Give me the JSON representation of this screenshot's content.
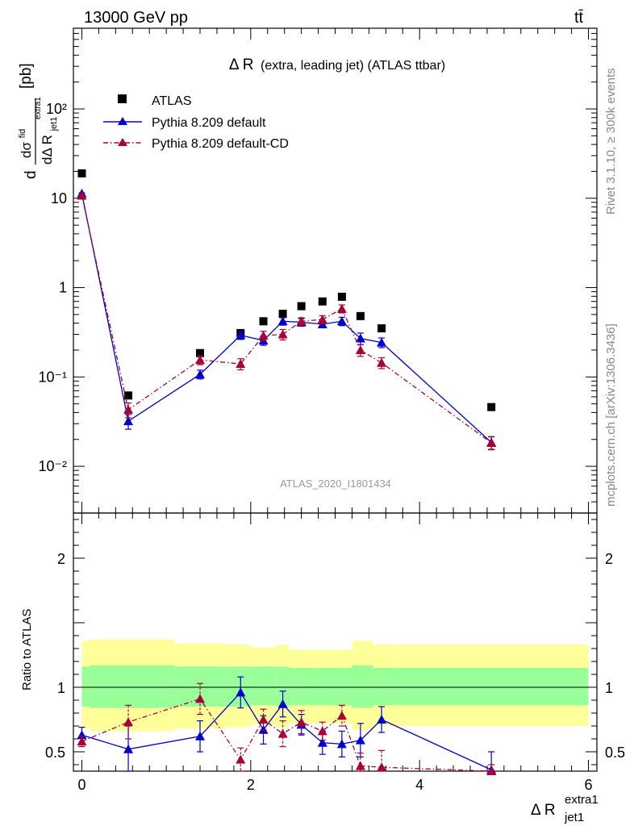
{
  "header": {
    "energy_label": "13000 GeV pp",
    "process_label": "tt̄"
  },
  "side_labels": {
    "rivet": "Rivet 3.1.10, ≥ 300k events",
    "mcplots": "mcplots.cern.ch [arXiv:1306.3436]"
  },
  "chart_data": [
    {
      "type": "scatter",
      "title": "Δ R",
      "title_suffix": "(extra, leading jet) (ATLAS ttbar)",
      "ylabel": "dσ/dΔ R [pb]",
      "ylabel_parts": {
        "num": "dσ",
        "num_sup": "fid",
        "den": "dΔ R",
        "den_sub": "jet1",
        "den_sup": "extra1",
        "unit": "[pb]"
      },
      "yscale": "log",
      "ylim": [
        0.003,
        800
      ],
      "xlim": [
        -0.1,
        6.1
      ],
      "y_tick_labels": [
        "10⁻²",
        "10⁻¹",
        "1",
        "10",
        "10²"
      ],
      "legend_position": "top-left",
      "watermark": "ATLAS_2020_I1801434",
      "series": [
        {
          "name": "ATLAS",
          "color": "#000000",
          "marker": "square",
          "line": "none",
          "x": [
            0.0,
            0.55,
            1.4,
            1.88,
            2.15,
            2.38,
            2.6,
            2.85,
            3.08,
            3.3,
            3.55,
            4.85
          ],
          "y": [
            19.0,
            0.062,
            0.185,
            0.31,
            0.42,
            0.51,
            0.62,
            0.7,
            0.79,
            0.48,
            0.35,
            0.046
          ]
        },
        {
          "name": "Pythia 8.209 default",
          "color": "#0000cc",
          "marker": "triangle",
          "line": "solid",
          "x": [
            0.0,
            0.55,
            1.4,
            1.88,
            2.15,
            2.38,
            2.6,
            2.85,
            3.08,
            3.3,
            3.55,
            4.85
          ],
          "y": [
            11.3,
            0.032,
            0.107,
            0.293,
            0.256,
            0.42,
            0.41,
            0.39,
            0.42,
            0.27,
            0.243,
            0.0185
          ],
          "err": [
            0.2,
            0.006,
            0.012,
            0.03,
            0.03,
            0.04,
            0.04,
            0.035,
            0.045,
            0.04,
            0.03,
            0.003
          ]
        },
        {
          "name": "Pythia 8.209 default-CD",
          "color": "#aa0033",
          "marker": "triangle",
          "line": "dashdot",
          "x": [
            0.0,
            0.55,
            1.4,
            1.88,
            2.15,
            2.38,
            2.6,
            2.85,
            3.08,
            3.3,
            3.55,
            4.85
          ],
          "y": [
            10.7,
            0.043,
            0.155,
            0.14,
            0.29,
            0.3,
            0.42,
            0.44,
            0.58,
            0.2,
            0.144,
            0.0183
          ],
          "err": [
            0.2,
            0.008,
            0.018,
            0.02,
            0.035,
            0.04,
            0.04,
            0.045,
            0.06,
            0.03,
            0.02,
            0.003
          ]
        }
      ]
    },
    {
      "type": "line",
      "ylabel": "Ratio to ATLAS",
      "xlabel": "Δ R",
      "xlabel_parts": {
        "main": "Δ R",
        "sub": "jet1",
        "sup": "extra1"
      },
      "ylim": [
        0.35,
        2.35
      ],
      "xlim": [
        -0.1,
        6.1
      ],
      "x_ticks": [
        0,
        2,
        4,
        6
      ],
      "y_ticks": [
        0.5,
        1,
        2
      ],
      "band_edges": [
        0.0,
        0.1,
        1.05,
        1.1,
        1.7,
        2.0,
        2.3,
        2.45,
        2.5,
        2.75,
        3.0,
        3.2,
        3.45,
        3.7,
        6.0
      ],
      "band_inner": [
        [
          0.85,
          1.16
        ],
        [
          0.84,
          1.17
        ],
        [
          0.84,
          1.17
        ],
        [
          0.85,
          1.16
        ],
        [
          0.85,
          1.16
        ],
        [
          0.86,
          1.16
        ],
        [
          0.85,
          1.16
        ],
        [
          0.86,
          1.15
        ],
        [
          0.86,
          1.15
        ],
        [
          0.86,
          1.15
        ],
        [
          0.86,
          1.15
        ],
        [
          0.84,
          1.17
        ],
        [
          0.86,
          1.15
        ],
        [
          0.86,
          1.15
        ]
      ],
      "band_outer": [
        [
          0.68,
          1.36
        ],
        [
          0.66,
          1.37
        ],
        [
          0.66,
          1.37
        ],
        [
          0.68,
          1.34
        ],
        [
          0.69,
          1.33
        ],
        [
          0.71,
          1.31
        ],
        [
          0.69,
          1.33
        ],
        [
          0.72,
          1.29
        ],
        [
          0.72,
          1.29
        ],
        [
          0.72,
          1.29
        ],
        [
          0.72,
          1.29
        ],
        [
          0.67,
          1.36
        ],
        [
          0.7,
          1.33
        ],
        [
          0.7,
          1.33
        ]
      ],
      "series": [
        {
          "name": "Pythia 8.209 default",
          "color": "#0000cc",
          "line": "solid",
          "x": [
            0.0,
            0.55,
            1.4,
            1.88,
            2.15,
            2.38,
            2.6,
            2.85,
            3.08,
            3.3,
            3.55,
            4.85
          ],
          "y": [
            0.63,
            0.52,
            0.62,
            0.96,
            0.67,
            0.87,
            0.71,
            0.57,
            0.56,
            0.59,
            0.75,
            0.36
          ],
          "err": [
            0.06,
            0.18,
            0.12,
            0.12,
            0.11,
            0.1,
            0.08,
            0.09,
            0.1,
            0.13,
            0.1,
            0.14
          ]
        },
        {
          "name": "Pythia 8.209 default-CD",
          "color": "#aa0033",
          "line": "dashdot",
          "x": [
            0.0,
            0.55,
            1.4,
            1.88,
            2.15,
            2.38,
            2.6,
            2.85,
            3.08,
            3.3,
            3.55,
            4.85
          ],
          "y": [
            0.58,
            0.73,
            0.91,
            0.44,
            0.75,
            0.64,
            0.73,
            0.66,
            0.78,
            0.39,
            0.38,
            0.35
          ],
          "err": [
            0.04,
            0.13,
            0.12,
            0.09,
            0.08,
            0.1,
            0.09,
            0.07,
            0.08,
            0.1,
            0.13,
            0.05
          ]
        }
      ]
    }
  ]
}
